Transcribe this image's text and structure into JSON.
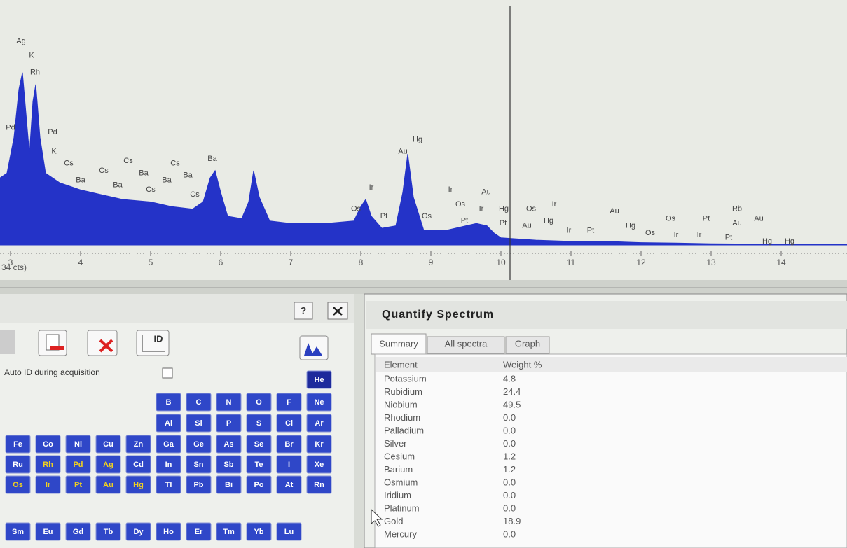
{
  "chart_data": {
    "type": "area",
    "color": "#2433c8",
    "x": [
      2.85,
      2.95,
      3.05,
      3.12,
      3.17,
      3.22,
      3.27,
      3.32,
      3.36,
      3.42,
      3.5,
      3.7,
      4.0,
      4.3,
      4.6,
      5.0,
      5.3,
      5.6,
      5.75,
      5.85,
      5.92,
      6.0,
      6.1,
      6.3,
      6.4,
      6.47,
      6.55,
      6.7,
      7.0,
      7.5,
      7.9,
      8.0,
      8.07,
      8.15,
      8.3,
      8.5,
      8.6,
      8.67,
      8.75,
      8.9,
      9.2,
      9.5,
      9.65,
      9.8,
      9.9,
      10.0,
      10.5,
      11.0,
      11.5,
      12.0,
      12.5,
      13.0,
      13.5,
      14.0,
      14.5,
      14.94
    ],
    "values": [
      28,
      30,
      45,
      65,
      72,
      55,
      38,
      60,
      67,
      45,
      30,
      26,
      23,
      21,
      19,
      18,
      16,
      15,
      18,
      28,
      31,
      22,
      12,
      11,
      18,
      31,
      20,
      10,
      9,
      9,
      10,
      16,
      19,
      12,
      7,
      8,
      22,
      38,
      20,
      6,
      6,
      8,
      9,
      8,
      5,
      3,
      2,
      1.5,
      1.5,
      1,
      0.8,
      0.5,
      0.4,
      0.3,
      0.3,
      0.3
    ],
    "xlim": [
      2.85,
      14.94
    ],
    "ylim": [
      0,
      100
    ],
    "xticks": [
      3,
      4,
      5,
      6,
      7,
      8,
      9,
      10,
      11,
      12,
      13,
      14
    ],
    "x_label": "34 cts)",
    "cursor_x": 10.13,
    "annotations": [
      {
        "text": "Ag",
        "x": 3.15,
        "y": 85
      },
      {
        "text": "K",
        "x": 3.3,
        "y": 79
      },
      {
        "text": "Rh",
        "x": 3.35,
        "y": 72
      },
      {
        "text": "Pd",
        "x": 3.0,
        "y": 49
      },
      {
        "text": "Pd",
        "x": 3.6,
        "y": 47
      },
      {
        "text": "K",
        "x": 3.62,
        "y": 39
      },
      {
        "text": "Cs",
        "x": 3.83,
        "y": 34
      },
      {
        "text": "Ba",
        "x": 4.0,
        "y": 27
      },
      {
        "text": "Cs",
        "x": 4.33,
        "y": 31
      },
      {
        "text": "Ba",
        "x": 4.53,
        "y": 25
      },
      {
        "text": "Cs",
        "x": 4.68,
        "y": 35
      },
      {
        "text": "Ba",
        "x": 4.9,
        "y": 30
      },
      {
        "text": "Cs",
        "x": 5.0,
        "y": 23
      },
      {
        "text": "Ba",
        "x": 5.23,
        "y": 27
      },
      {
        "text": "Cs",
        "x": 5.35,
        "y": 34
      },
      {
        "text": "Ba",
        "x": 5.53,
        "y": 29
      },
      {
        "text": "Cs",
        "x": 5.63,
        "y": 21
      },
      {
        "text": "Ba",
        "x": 5.88,
        "y": 36
      },
      {
        "text": "Hg",
        "x": 8.81,
        "y": 44
      },
      {
        "text": "Au",
        "x": 8.6,
        "y": 39
      },
      {
        "text": "Ir",
        "x": 8.15,
        "y": 24
      },
      {
        "text": "Os",
        "x": 7.93,
        "y": 15
      },
      {
        "text": "Pt",
        "x": 8.33,
        "y": 12
      },
      {
        "text": "Os",
        "x": 8.94,
        "y": 12
      },
      {
        "text": "Ir",
        "x": 9.28,
        "y": 23
      },
      {
        "text": "Os",
        "x": 9.42,
        "y": 17
      },
      {
        "text": "Pt",
        "x": 9.48,
        "y": 10
      },
      {
        "text": "Ir",
        "x": 9.72,
        "y": 15
      },
      {
        "text": "Au",
        "x": 9.79,
        "y": 22
      },
      {
        "text": "Hg",
        "x": 10.04,
        "y": 15
      },
      {
        "text": "Pt",
        "x": 10.03,
        "y": 9
      },
      {
        "text": "Os",
        "x": 10.43,
        "y": 15
      },
      {
        "text": "Au",
        "x": 10.37,
        "y": 8
      },
      {
        "text": "Hg",
        "x": 10.68,
        "y": 10
      },
      {
        "text": "Ir",
        "x": 10.76,
        "y": 17
      },
      {
        "text": "Ir",
        "x": 10.97,
        "y": 6
      },
      {
        "text": "Pt",
        "x": 11.28,
        "y": 6
      },
      {
        "text": "Au",
        "x": 11.62,
        "y": 14
      },
      {
        "text": "Hg",
        "x": 11.85,
        "y": 8
      },
      {
        "text": "Os",
        "x": 12.13,
        "y": 5
      },
      {
        "text": "Os",
        "x": 12.42,
        "y": 11
      },
      {
        "text": "Ir",
        "x": 12.5,
        "y": 4
      },
      {
        "text": "Pt",
        "x": 12.93,
        "y": 11
      },
      {
        "text": "Ir",
        "x": 12.83,
        "y": 4
      },
      {
        "text": "Pt",
        "x": 13.25,
        "y": 3
      },
      {
        "text": "Rb",
        "x": 13.37,
        "y": 15
      },
      {
        "text": "Au",
        "x": 13.37,
        "y": 9
      },
      {
        "text": "Au",
        "x": 13.68,
        "y": 11
      },
      {
        "text": "Hg",
        "x": 13.8,
        "y": 1.5
      },
      {
        "text": "Hg",
        "x": 14.12,
        "y": 1.5
      }
    ]
  },
  "left_panel": {
    "help": "?",
    "id_button": "ID",
    "auto_id_label": "Auto ID during acquisition",
    "element_rows": [
      [
        null,
        null,
        null,
        null,
        null,
        null,
        null,
        null,
        null,
        null,
        "He"
      ],
      [
        null,
        null,
        null,
        null,
        null,
        "B",
        "C",
        "N",
        "O",
        "F",
        "Ne"
      ],
      [
        null,
        null,
        null,
        null,
        null,
        "Al",
        "Si",
        "P",
        "S",
        "Cl",
        "Ar"
      ],
      [
        "Fe",
        "Co",
        "Ni",
        "Cu",
        "Zn",
        "Ga",
        "Ge",
        "As",
        "Se",
        "Br",
        "Kr"
      ],
      [
        "Ru",
        "Rh",
        "Pd",
        "Ag",
        "Cd",
        "In",
        "Sn",
        "Sb",
        "Te",
        "I",
        "Xe"
      ],
      [
        "Os",
        "Ir",
        "Pt",
        "Au",
        "Hg",
        "Tl",
        "Pb",
        "Bi",
        "Po",
        "At",
        "Rn"
      ]
    ],
    "lanthanides": [
      "Sm",
      "Eu",
      "Gd",
      "Tb",
      "Dy",
      "Ho",
      "Er",
      "Tm",
      "Yb",
      "Lu"
    ],
    "highlighted": [
      "Rh",
      "Pd",
      "Ag",
      "Os",
      "Ir",
      "Pt",
      "Au",
      "Hg"
    ]
  },
  "quantify_panel": {
    "title": "Quantify Spectrum",
    "tabs": [
      "Summary",
      "All spectra",
      "Graph"
    ],
    "table": {
      "columns": [
        "Element",
        "Weight %"
      ],
      "rows": [
        [
          "Potassium",
          "4.8"
        ],
        [
          "Rubidium",
          "24.4"
        ],
        [
          "Niobium",
          "49.5"
        ],
        [
          "Rhodium",
          "0.0"
        ],
        [
          "Palladium",
          "0.0"
        ],
        [
          "Silver",
          "0.0"
        ],
        [
          "Cesium",
          "1.2"
        ],
        [
          "Barium",
          "1.2"
        ],
        [
          "Osmium",
          "0.0"
        ],
        [
          "Iridium",
          "0.0"
        ],
        [
          "Platinum",
          "0.0"
        ],
        [
          "Gold",
          "18.9"
        ],
        [
          "Mercury",
          "0.0"
        ]
      ]
    }
  }
}
